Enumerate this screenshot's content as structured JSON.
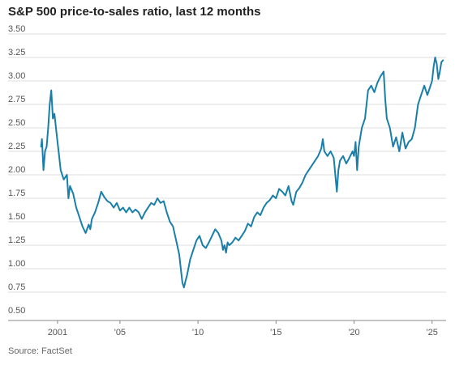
{
  "title": "S&P 500 price-to-sales ratio, last 12 months",
  "source": "Source: FactSet",
  "colors": {
    "line": "#1a7fa8",
    "grid": "#dddddd",
    "axis": "#888888"
  },
  "chart_data": {
    "type": "line",
    "title": "S&P 500 price-to-sales ratio, last 12 months",
    "xlabel": "",
    "ylabel": "",
    "xlim": [
      1999.6,
      2025.9
    ],
    "ylim": [
      0.5,
      3.5
    ],
    "yticks": [
      3.5,
      3.25,
      3.0,
      2.75,
      2.5,
      2.25,
      2.0,
      1.75,
      1.5,
      1.25,
      1.0,
      0.75,
      0.5
    ],
    "yticklabels": [
      "3.50",
      "3.25",
      "3.00",
      "2.75",
      "2.50",
      "2.25",
      "2.00",
      "1.75",
      "1.50",
      "1.25",
      "1.00",
      "0.75",
      "0.50"
    ],
    "xticks": [
      2001,
      2005,
      2010,
      2015,
      2020,
      2025
    ],
    "xticklabels": [
      "2001",
      "'05",
      "'10",
      "'15",
      "'20",
      "'25"
    ],
    "grid": "horizontal",
    "legend": "none",
    "series": [
      {
        "x": [
          1999.95,
          2000.0,
          2000.1,
          2000.2,
          2000.3,
          2000.4,
          2000.5,
          2000.6,
          2000.7,
          2000.8,
          2000.9,
          2001.0,
          2001.1,
          2001.2,
          2001.4,
          2001.6,
          2001.7,
          2001.8,
          2002.0,
          2002.2,
          2002.4,
          2002.6,
          2002.8,
          2003.0,
          2003.1,
          2003.2,
          2003.4,
          2003.6,
          2003.8,
          2004.0,
          2004.2,
          2004.4,
          2004.6,
          2004.8,
          2005.0,
          2005.2,
          2005.4,
          2005.6,
          2005.8,
          2006.0,
          2006.2,
          2006.4,
          2006.6,
          2006.8,
          2007.0,
          2007.2,
          2007.4,
          2007.6,
          2007.8,
          2008.0,
          2008.2,
          2008.4,
          2008.6,
          2008.8,
          2008.9,
          2009.0,
          2009.1,
          2009.2,
          2009.3,
          2009.5,
          2009.7,
          2009.9,
          2010.1,
          2010.3,
          2010.5,
          2010.7,
          2010.9,
          2011.1,
          2011.3,
          2011.5,
          2011.6,
          2011.7,
          2011.8,
          2011.9,
          2012.0,
          2012.2,
          2012.4,
          2012.6,
          2012.8,
          2013.0,
          2013.2,
          2013.4,
          2013.6,
          2013.8,
          2014.0,
          2014.2,
          2014.4,
          2014.6,
          2014.8,
          2015.0,
          2015.2,
          2015.4,
          2015.6,
          2015.8,
          2016.0,
          2016.1,
          2016.3,
          2016.5,
          2016.7,
          2016.9,
          2017.1,
          2017.3,
          2017.5,
          2017.7,
          2017.9,
          2018.0,
          2018.1,
          2018.3,
          2018.5,
          2018.7,
          2018.9,
          2019.0,
          2019.1,
          2019.3,
          2019.5,
          2019.7,
          2019.9,
          2020.0,
          2020.1,
          2020.2,
          2020.3,
          2020.5,
          2020.7,
          2020.9,
          2021.1,
          2021.3,
          2021.5,
          2021.7,
          2021.9,
          2022.0,
          2022.1,
          2022.3,
          2022.5,
          2022.7,
          2022.9,
          2023.1,
          2023.3,
          2023.5,
          2023.7,
          2023.9,
          2024.1,
          2024.3,
          2024.5,
          2024.7,
          2024.9,
          2025.0,
          2025.1,
          2025.2,
          2025.3,
          2025.4,
          2025.5,
          2025.6,
          2025.7
        ],
        "values": [
          2.3,
          2.38,
          2.05,
          2.25,
          2.3,
          2.5,
          2.75,
          2.9,
          2.6,
          2.65,
          2.5,
          2.35,
          2.2,
          2.05,
          1.95,
          2.0,
          1.75,
          1.88,
          1.8,
          1.65,
          1.55,
          1.45,
          1.38,
          1.47,
          1.42,
          1.53,
          1.6,
          1.7,
          1.82,
          1.76,
          1.72,
          1.7,
          1.65,
          1.7,
          1.62,
          1.65,
          1.6,
          1.65,
          1.6,
          1.63,
          1.6,
          1.53,
          1.6,
          1.65,
          1.7,
          1.68,
          1.75,
          1.7,
          1.72,
          1.6,
          1.5,
          1.45,
          1.3,
          1.15,
          1.0,
          0.85,
          0.8,
          0.87,
          0.93,
          1.1,
          1.2,
          1.3,
          1.35,
          1.25,
          1.22,
          1.28,
          1.35,
          1.42,
          1.38,
          1.3,
          1.2,
          1.25,
          1.17,
          1.28,
          1.25,
          1.28,
          1.33,
          1.3,
          1.35,
          1.4,
          1.48,
          1.45,
          1.55,
          1.6,
          1.57,
          1.65,
          1.7,
          1.73,
          1.78,
          1.75,
          1.85,
          1.82,
          1.78,
          1.88,
          1.72,
          1.68,
          1.82,
          1.86,
          1.92,
          2.0,
          2.05,
          2.1,
          2.15,
          2.2,
          2.28,
          2.38,
          2.25,
          2.2,
          2.25,
          2.18,
          1.82,
          2.05,
          2.15,
          2.2,
          2.12,
          2.18,
          2.25,
          2.2,
          2.35,
          2.05,
          2.3,
          2.5,
          2.6,
          2.9,
          2.95,
          2.88,
          2.98,
          3.05,
          3.1,
          2.8,
          2.6,
          2.5,
          2.3,
          2.4,
          2.25,
          2.45,
          2.28,
          2.35,
          2.38,
          2.5,
          2.75,
          2.85,
          2.95,
          2.85,
          2.95,
          3.0,
          3.15,
          3.25,
          3.18,
          3.02,
          3.1,
          3.2,
          3.22
        ]
      }
    ]
  }
}
